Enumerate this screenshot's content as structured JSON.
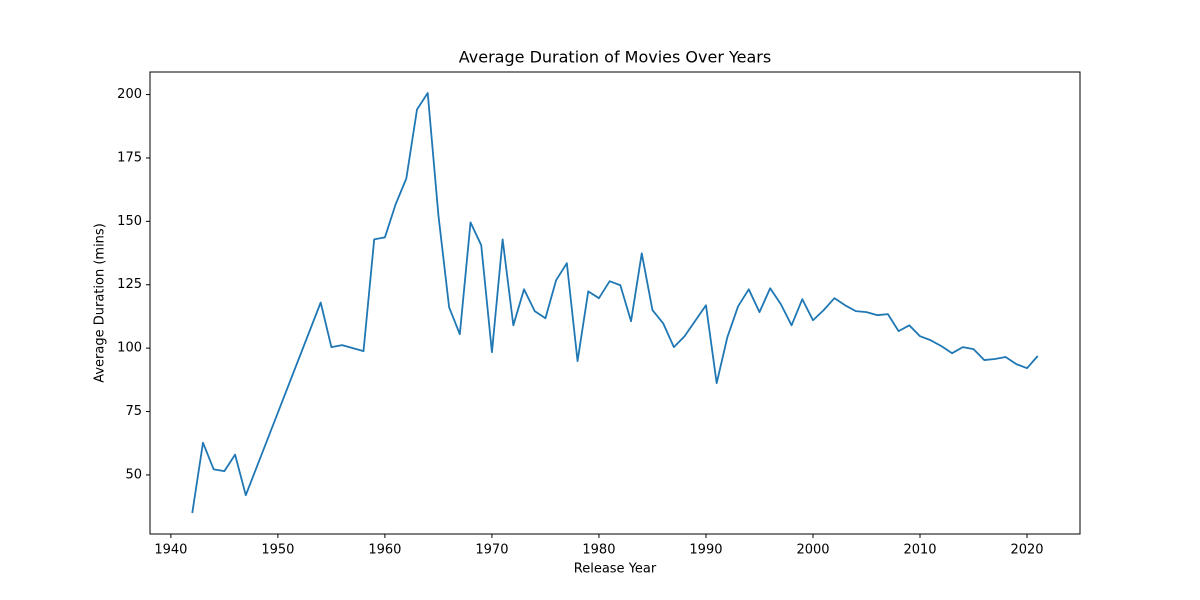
{
  "chart_data": {
    "type": "line",
    "title": "Average Duration of Movies Over Years",
    "xlabel": "Release Year",
    "ylabel": "Average Duration (mins)",
    "x": [
      1942,
      1943,
      1944,
      1945,
      1946,
      1947,
      1954,
      1955,
      1956,
      1957,
      1958,
      1959,
      1960,
      1961,
      1962,
      1963,
      1964,
      1965,
      1966,
      1967,
      1968,
      1969,
      1970,
      1971,
      1972,
      1973,
      1974,
      1975,
      1976,
      1977,
      1978,
      1979,
      1980,
      1981,
      1982,
      1983,
      1984,
      1985,
      1986,
      1987,
      1988,
      1989,
      1990,
      1991,
      1992,
      1993,
      1994,
      1995,
      1996,
      1997,
      1998,
      1999,
      2000,
      2001,
      2002,
      2003,
      2004,
      2005,
      2006,
      2007,
      2008,
      2009,
      2010,
      2011,
      2012,
      2013,
      2014,
      2015,
      2016,
      2017,
      2018,
      2019,
      2020,
      2021
    ],
    "series": [
      {
        "name": "Average Duration",
        "color": "#1f77b4",
        "values": [
          35.0,
          62.7,
          52.2,
          51.5,
          58.0,
          42.0,
          118.0,
          100.4,
          101.2,
          100.0,
          98.8,
          142.9,
          143.7,
          156.7,
          166.9,
          194.1,
          200.6,
          152.4,
          116.1,
          105.5,
          149.6,
          140.6,
          98.4,
          142.9,
          109.0,
          123.2,
          114.6,
          111.8,
          126.8,
          133.5,
          94.9,
          122.4,
          119.7,
          126.4,
          124.8,
          110.6,
          137.4,
          115.0,
          109.8,
          100.4,
          104.7,
          110.8,
          116.9,
          86.2,
          104.3,
          116.5,
          123.2,
          114.2,
          123.6,
          117.3,
          109.0,
          119.3,
          111.0,
          115.0,
          119.7,
          116.9,
          114.6,
          114.2,
          113.0,
          113.4,
          106.7,
          109.0,
          104.7,
          103.1,
          100.8,
          98.0,
          100.4,
          99.6,
          95.3,
          95.7,
          96.5,
          93.7,
          92.1,
          96.9
        ]
      }
    ],
    "xlim": [
      1938.05,
      2024.95
    ],
    "ylim": [
      26.7,
      208.9
    ],
    "xticks": [
      1940,
      1950,
      1960,
      1970,
      1980,
      1990,
      2000,
      2010,
      2020
    ],
    "yticks": [
      50,
      75,
      100,
      125,
      150,
      175,
      200
    ],
    "grid": false
  }
}
